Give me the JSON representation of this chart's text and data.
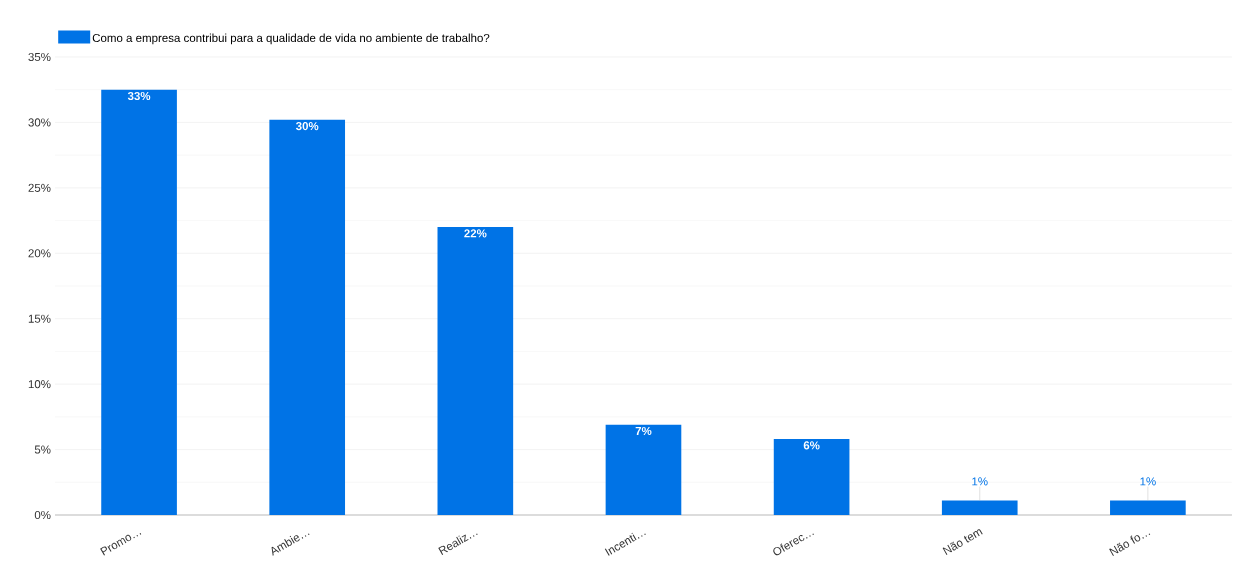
{
  "chart_data": {
    "type": "bar",
    "categories": [
      "Promo…",
      "Ambie…",
      "Realiz…",
      "Incenti…",
      "Oferec…",
      "Não tem",
      "Não fo…"
    ],
    "series": [
      {
        "name": "Como a empresa contribui para a qualidade de vida no ambiente de trabalho?",
        "color": "#0073e6",
        "values": [
          32.5,
          30.2,
          22.0,
          6.9,
          5.8,
          1.1,
          1.1
        ],
        "value_labels": [
          "33%",
          "30%",
          "22%",
          "7%",
          "6%",
          "1%",
          "1%"
        ]
      }
    ],
    "ylim": [
      0,
      35
    ],
    "yticks": [
      {
        "value": 0,
        "label": "0%"
      },
      {
        "value": 5,
        "label": "5%"
      },
      {
        "value": 10,
        "label": "10%"
      },
      {
        "value": 15,
        "label": "15%"
      },
      {
        "value": 20,
        "label": "20%"
      },
      {
        "value": 25,
        "label": "25%"
      },
      {
        "value": 30,
        "label": "30%"
      },
      {
        "value": 35,
        "label": "35%"
      }
    ],
    "grid": "y",
    "legend": "top left"
  }
}
